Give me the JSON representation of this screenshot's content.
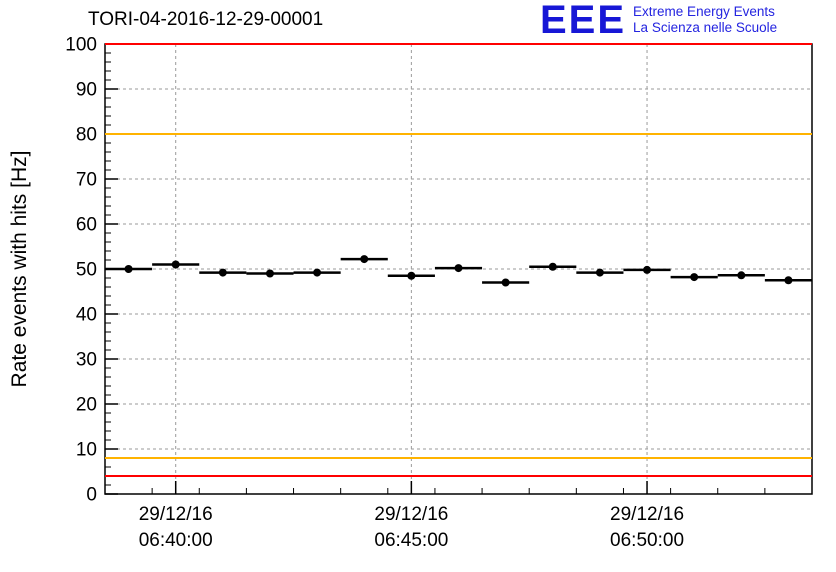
{
  "header": {
    "title": "TORI-04-2016-12-29-00001",
    "logo": {
      "text": "EEE",
      "line1": "Extreme Energy Events",
      "line2": "La Scienza nelle Scuole",
      "color": "#1717d6"
    }
  },
  "chart_data": {
    "type": "scatter",
    "title": "TORI-04-2016-12-29-00001",
    "xlabel": "",
    "ylabel": "Rate events with hits [Hz]",
    "ylim": [
      0,
      100
    ],
    "y_major_step": 10,
    "y_minor_step": 2,
    "xlim_s": [
      0,
      900
    ],
    "x_minor_step_s": 60,
    "grid": true,
    "grid_color": "#9a9a9a",
    "frame_color": "#000000",
    "x_tick_labels": [
      {
        "offset_s": 90,
        "date": "29/12/16",
        "time": "06:40:00"
      },
      {
        "offset_s": 390,
        "date": "29/12/16",
        "time": "06:45:00"
      },
      {
        "offset_s": 690,
        "date": "29/12/16",
        "time": "06:50:00"
      }
    ],
    "reference_lines": [
      {
        "y": 100,
        "color": "#ff0000",
        "name": "upper-alarm"
      },
      {
        "y": 80,
        "color": "#ffb300",
        "name": "upper-warning"
      },
      {
        "y": 8,
        "color": "#ffb300",
        "name": "lower-warning"
      },
      {
        "y": 4,
        "color": "#ff0000",
        "name": "lower-alarm"
      }
    ],
    "bin_half_width_s": 30,
    "series": [
      {
        "name": "rate-events-with-hits",
        "marker": "filled-circle",
        "color": "#000000",
        "points": [
          {
            "time": "06:39:00",
            "offset_s": 30,
            "rate_hz": 50.0
          },
          {
            "time": "06:40:00",
            "offset_s": 90,
            "rate_hz": 51.0
          },
          {
            "time": "06:41:00",
            "offset_s": 150,
            "rate_hz": 49.2
          },
          {
            "time": "06:42:00",
            "offset_s": 210,
            "rate_hz": 49.0
          },
          {
            "time": "06:43:00",
            "offset_s": 270,
            "rate_hz": 49.2
          },
          {
            "time": "06:44:00",
            "offset_s": 330,
            "rate_hz": 52.2
          },
          {
            "time": "06:45:00",
            "offset_s": 390,
            "rate_hz": 48.5
          },
          {
            "time": "06:46:00",
            "offset_s": 450,
            "rate_hz": 50.2
          },
          {
            "time": "06:47:00",
            "offset_s": 510,
            "rate_hz": 47.0
          },
          {
            "time": "06:48:00",
            "offset_s": 570,
            "rate_hz": 50.5
          },
          {
            "time": "06:49:00",
            "offset_s": 630,
            "rate_hz": 49.2
          },
          {
            "time": "06:50:00",
            "offset_s": 690,
            "rate_hz": 49.8
          },
          {
            "time": "06:51:00",
            "offset_s": 750,
            "rate_hz": 48.2
          },
          {
            "time": "06:52:00",
            "offset_s": 810,
            "rate_hz": 48.6
          },
          {
            "time": "06:53:00",
            "offset_s": 870,
            "rate_hz": 47.5
          }
        ]
      }
    ]
  }
}
